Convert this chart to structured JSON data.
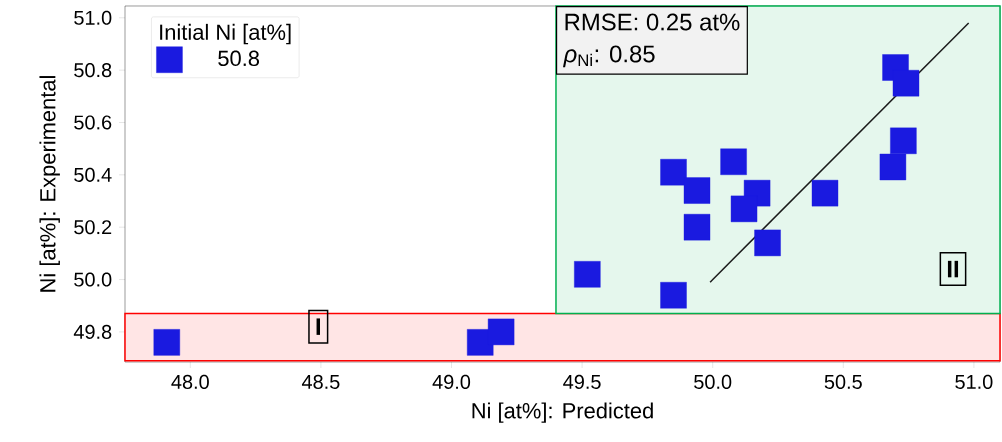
{
  "chart_data": {
    "type": "scatter",
    "xlabel": "Ni [at%]: Predicted",
    "ylabel": "Ni [at%]: Experimental",
    "legend_title": "Initial Ni [at%]",
    "legend": "top left",
    "marker": "square",
    "grid": false,
    "xlim": [
      47.75,
      51.1
    ],
    "ylim": [
      49.685,
      51.045
    ],
    "xticks": [
      {
        "value": 48,
        "label": "48.0"
      },
      {
        "value": 48.5,
        "label": "48.5"
      },
      {
        "value": 49,
        "label": "49.0"
      },
      {
        "value": 49.5,
        "label": "49.5"
      },
      {
        "value": 50,
        "label": "50.0"
      },
      {
        "value": 50.5,
        "label": "50.5"
      },
      {
        "value": 51,
        "label": "51.0"
      }
    ],
    "yticks": [
      {
        "value": 49.8,
        "label": "49.8"
      },
      {
        "value": 50,
        "label": "50.0"
      },
      {
        "value": 50.2,
        "label": "50.2"
      },
      {
        "value": 50.4,
        "label": "50.4"
      },
      {
        "value": 50.6,
        "label": "50.6"
      },
      {
        "value": 50.8,
        "label": "50.8"
      },
      {
        "value": 51,
        "label": "51.0"
      }
    ],
    "series": [
      {
        "name": "50.8",
        "color": "#1a1ae0",
        "x": [
          47.91,
          49.11,
          49.19,
          49.52,
          49.85,
          49.85,
          49.94,
          49.94,
          50.08,
          50.17,
          50.12,
          50.21,
          50.43,
          50.69,
          50.73,
          50.7,
          50.74
        ],
        "values": [
          49.76,
          49.76,
          49.8,
          50.02,
          49.94,
          50.41,
          50.34,
          50.2,
          50.45,
          50.33,
          50.27,
          50.14,
          50.33,
          50.43,
          50.53,
          50.81,
          50.75
        ]
      },
      {
        "type": "line",
        "color": "#1a1a1a",
        "line_style": "solid",
        "marker": "none",
        "x": [
          49.99,
          50.98
        ],
        "values": [
          49.99,
          50.98
        ]
      }
    ],
    "bands": [
      {
        "axis": "y",
        "from": 49.69,
        "to": 49.87,
        "color": "#ff0000"
      },
      {
        "axis": "x",
        "from": 49.4,
        "to": 51.1,
        "color": "#00b050"
      }
    ],
    "annotations": [
      "RMSE: 0.25 at%",
      "*ρ*$_{Ni}$: 0.85",
      {
        "text": "I",
        "x": 48.49,
        "y": 49.82
      },
      {
        "text": "II",
        "x": 50.92,
        "y": 50.04
      }
    ]
  }
}
